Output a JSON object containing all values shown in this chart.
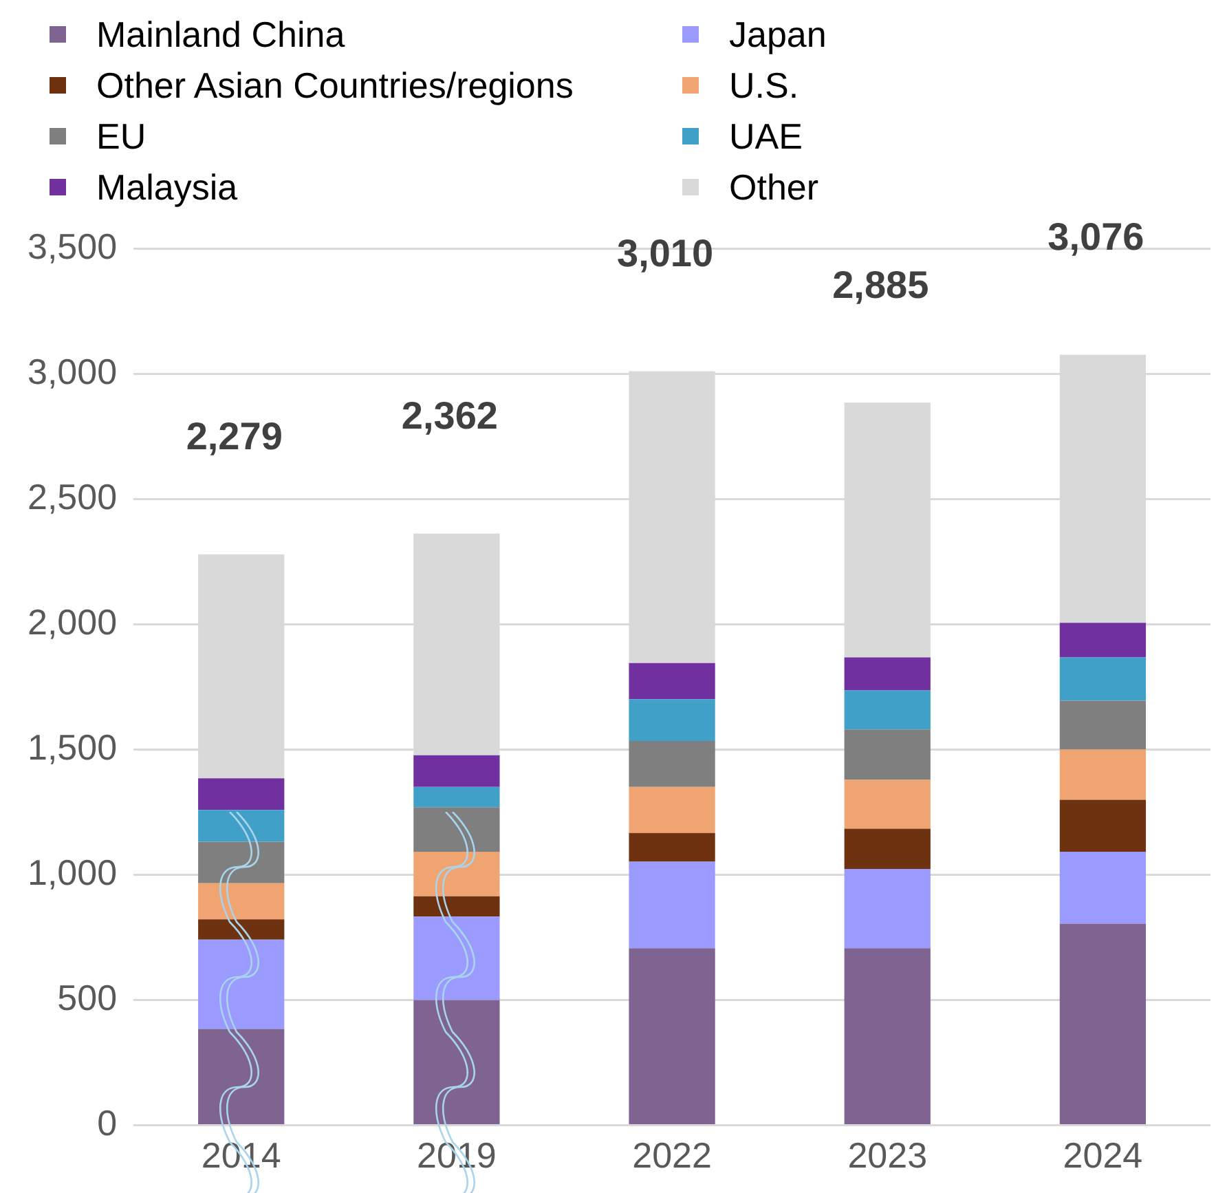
{
  "chart_data": {
    "type": "bar",
    "stacked": true,
    "categories": [
      "2014",
      "2019",
      "2022",
      "2023",
      "2024"
    ],
    "series": [
      {
        "name": "Mainland China",
        "color": "#7f6491",
        "values": [
          385,
          500,
          707,
          707,
          805
        ]
      },
      {
        "name": "Japan",
        "color": "#9b9bff",
        "values": [
          356,
          333,
          345,
          316,
          287
        ]
      },
      {
        "name": "Other Asian Countries/regions",
        "color": "#6e3210",
        "values": [
          81,
          81,
          115,
          161,
          207
        ]
      },
      {
        "name": "U.S.",
        "color": "#f0a472",
        "values": [
          144,
          178,
          184,
          195,
          201
        ]
      },
      {
        "name": "EU",
        "color": "#7f7f7f",
        "values": [
          166,
          178,
          183,
          201,
          195
        ]
      },
      {
        "name": "UAE",
        "color": "#41a0c8",
        "values": [
          127,
          81,
          167,
          156,
          173
        ]
      },
      {
        "name": "Malaysia",
        "color": "#7030a0",
        "values": [
          126,
          126,
          144,
          132,
          138
        ]
      },
      {
        "name": "Other",
        "color": "#d9d9d9",
        "values": [
          894,
          885,
          1165,
          1017,
          1070
        ]
      }
    ],
    "totals": [
      "2,279",
      "2,362",
      "3,010",
      "2,885",
      "3,076"
    ],
    "ylim": [
      0,
      3500
    ],
    "yticks": [
      0,
      500,
      {
        "value": 1000,
        "label": "1,000"
      },
      {
        "value": 1500,
        "label": "1,500"
      },
      {
        "value": 2000,
        "label": "2,000"
      },
      {
        "value": 2500,
        "label": "2,500"
      },
      {
        "value": 3000,
        "label": "3,000"
      },
      {
        "value": 3500,
        "label": "3,500"
      }
    ],
    "grid": "y",
    "legend": "top"
  }
}
